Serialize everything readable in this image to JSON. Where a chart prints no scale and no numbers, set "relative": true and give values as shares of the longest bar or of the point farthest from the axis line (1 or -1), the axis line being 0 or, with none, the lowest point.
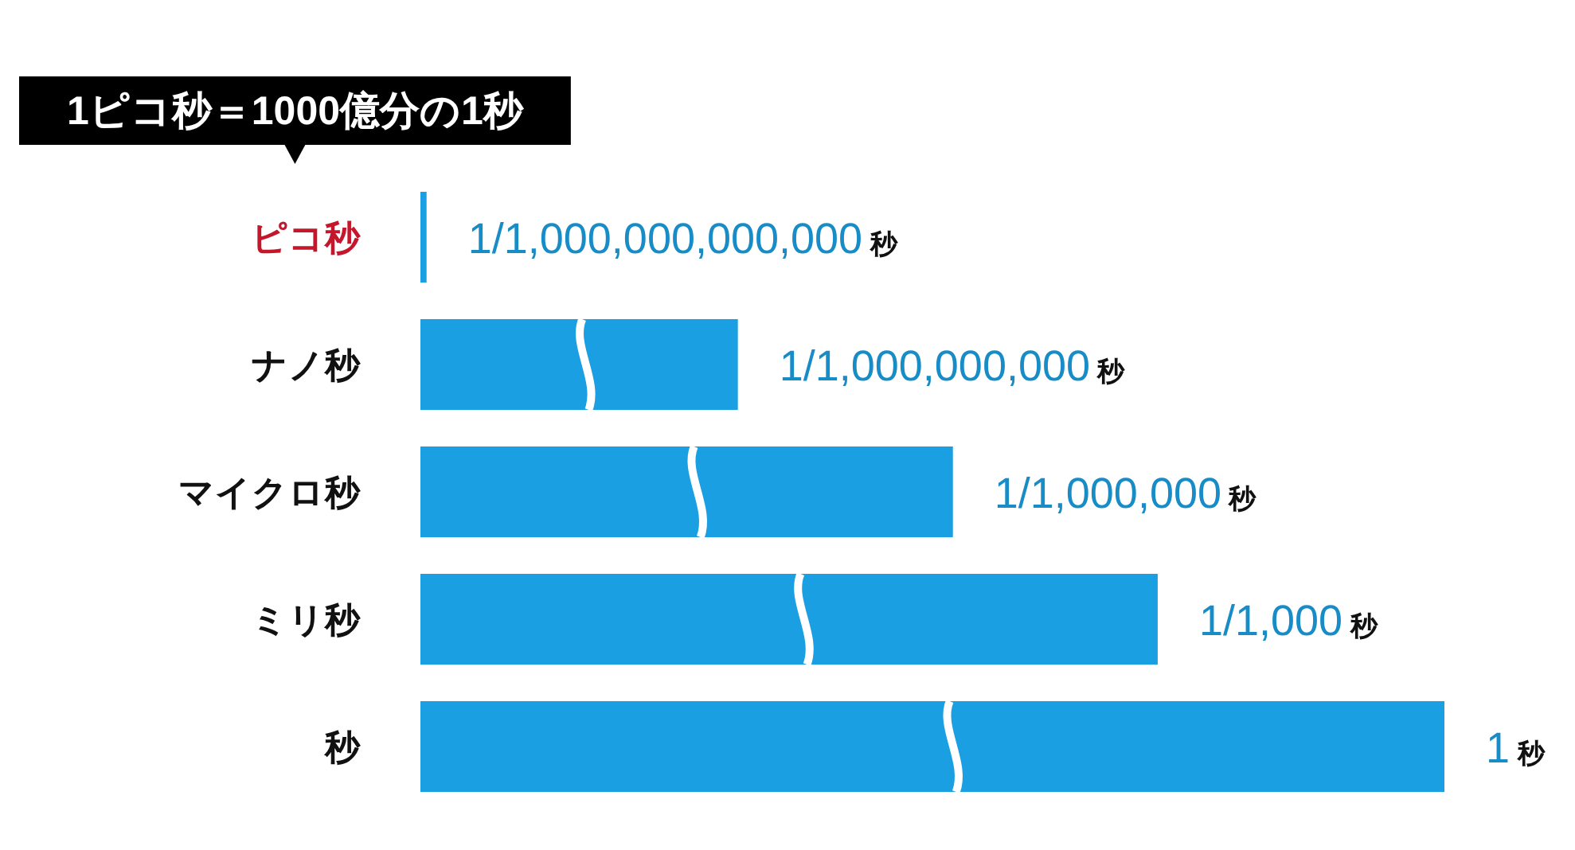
{
  "chart_data": {
    "type": "bar",
    "orientation": "horizontal",
    "relative": true,
    "categories": [
      "ピコ秒",
      "ナノ秒",
      "マイクロ秒",
      "ミリ秒",
      "秒"
    ],
    "values": [
      0.006,
      0.31,
      0.52,
      0.72,
      1
    ],
    "color": "#1a9fe2",
    "annotations": [
      "1ピコ秒＝1000億分の1秒",
      "1/1,000,000,000,000 秒",
      "1/1,000,000,000 秒",
      "1/1,000,000 秒",
      "1/1,000 秒",
      "1 秒"
    ]
  }
}
